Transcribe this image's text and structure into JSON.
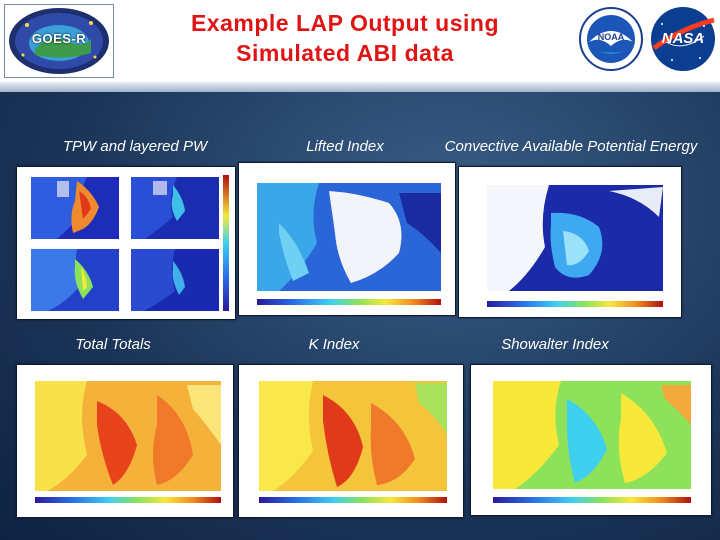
{
  "header": {
    "title_line1": "Example LAP Output using",
    "title_line2": "Simulated ABI data",
    "logos": {
      "goes": {
        "text": "GOES-R"
      },
      "noaa": {
        "text": "NOAA"
      },
      "nasa": {
        "text": "NASA"
      }
    }
  },
  "panels": [
    {
      "id": "tpw",
      "caption": "TPW and layered PW"
    },
    {
      "id": "li",
      "caption": "Lifted Index"
    },
    {
      "id": "cape",
      "caption": "Convective Available Potential Energy"
    },
    {
      "id": "tt",
      "caption": "Total Totals"
    },
    {
      "id": "ki",
      "caption": "K Index"
    },
    {
      "id": "si",
      "caption": "Showalter Index"
    }
  ],
  "colors": {
    "title": "#e01414",
    "background": "#1b3558",
    "caption": "#ffffff"
  }
}
